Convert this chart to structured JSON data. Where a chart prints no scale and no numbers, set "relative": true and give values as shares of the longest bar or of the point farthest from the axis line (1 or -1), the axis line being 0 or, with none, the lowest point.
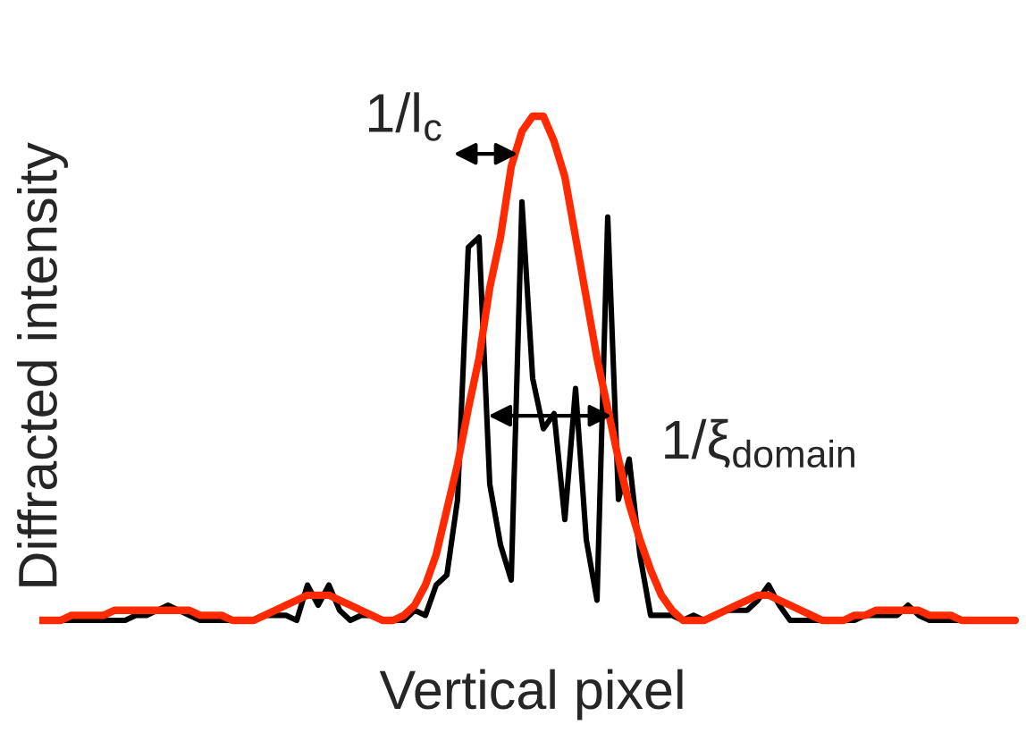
{
  "chart_data": {
    "type": "line",
    "relative": true,
    "xlabel": "Vertical pixel",
    "ylabel": "Diffracted intensity",
    "categories": [
      null,
      null,
      null,
      null,
      null,
      null,
      null,
      null,
      null,
      null,
      null,
      null,
      null,
      null,
      null,
      null,
      null,
      null,
      null,
      null,
      null,
      null,
      null,
      null,
      null,
      null,
      null,
      null,
      null,
      null,
      null,
      null,
      null,
      null,
      null,
      null,
      null,
      null,
      null,
      null,
      null,
      null,
      null,
      null,
      null,
      null,
      null,
      null,
      null,
      null,
      null,
      null,
      null,
      null,
      null,
      null,
      null,
      null,
      null,
      null,
      null,
      null,
      null,
      null,
      null,
      null,
      null,
      null,
      null,
      null,
      null,
      null,
      null,
      null,
      null,
      null,
      null,
      null,
      null,
      null,
      null,
      null,
      null,
      null,
      null,
      null,
      null,
      null,
      null,
      null,
      null,
      null
    ],
    "series": [
      {
        "color": "#000000",
        "values": [
          0,
          0,
          0,
          0,
          0,
          0,
          0,
          0,
          0,
          0.01,
          0.01,
          0.02,
          0.03,
          0.02,
          0.01,
          0,
          0,
          0,
          0,
          0,
          0,
          0.01,
          0.01,
          0.01,
          0,
          0.07,
          0.03,
          0.07,
          0.02,
          0,
          0.01,
          0.01,
          0,
          0,
          0,
          0.02,
          0.01,
          0.07,
          0.09,
          0.24,
          0.74,
          0.76,
          0.27,
          0.15,
          0.08,
          0.83,
          0.48,
          0.38,
          0.41,
          0.2,
          0.46,
          0.16,
          0.04,
          0.8,
          0.24,
          0.32,
          0.13,
          0.01,
          0.01,
          0.01,
          0,
          0.01,
          0,
          0.01,
          0.02,
          0.02,
          0.02,
          0.04,
          0.07,
          0.03,
          0,
          0,
          0,
          0,
          0,
          0,
          0,
          0.01,
          0.01,
          0.01,
          0.01,
          0.03,
          0.01,
          0,
          0,
          0,
          0,
          0,
          null,
          null,
          null,
          null
        ]
      },
      {
        "color": "#ff2a00",
        "values": [
          0,
          0,
          0,
          0.01,
          0.01,
          0.01,
          0.01,
          0.02,
          0.02,
          0.02,
          0.02,
          0.02,
          0.02,
          0.02,
          0.02,
          0.01,
          0.01,
          0.01,
          0,
          0,
          0,
          0.01,
          0.02,
          0.03,
          0.04,
          0.05,
          0.05,
          0.05,
          0.04,
          0.03,
          0.02,
          0.01,
          0,
          0,
          0.01,
          0.03,
          0.07,
          0.13,
          0.22,
          0.31,
          0.42,
          0.52,
          0.66,
          0.76,
          0.9,
          0.97,
          1.0,
          1.0,
          0.95,
          0.88,
          0.76,
          0.64,
          0.52,
          0.42,
          0.32,
          0.23,
          0.16,
          0.1,
          0.05,
          0.02,
          0,
          0,
          0,
          0.01,
          0.02,
          0.03,
          0.04,
          0.05,
          0.05,
          0.04,
          0.03,
          0.02,
          0.01,
          0,
          0,
          0,
          0.01,
          0.01,
          0.02,
          0.02,
          0.02,
          0.02,
          0.02,
          0.01,
          0.01,
          0.01,
          0,
          0,
          0,
          0,
          0,
          0
        ]
      }
    ],
    "annotations": [
      "1/l$_{c}$",
      "1/ξ$_{domain}$"
    ]
  }
}
